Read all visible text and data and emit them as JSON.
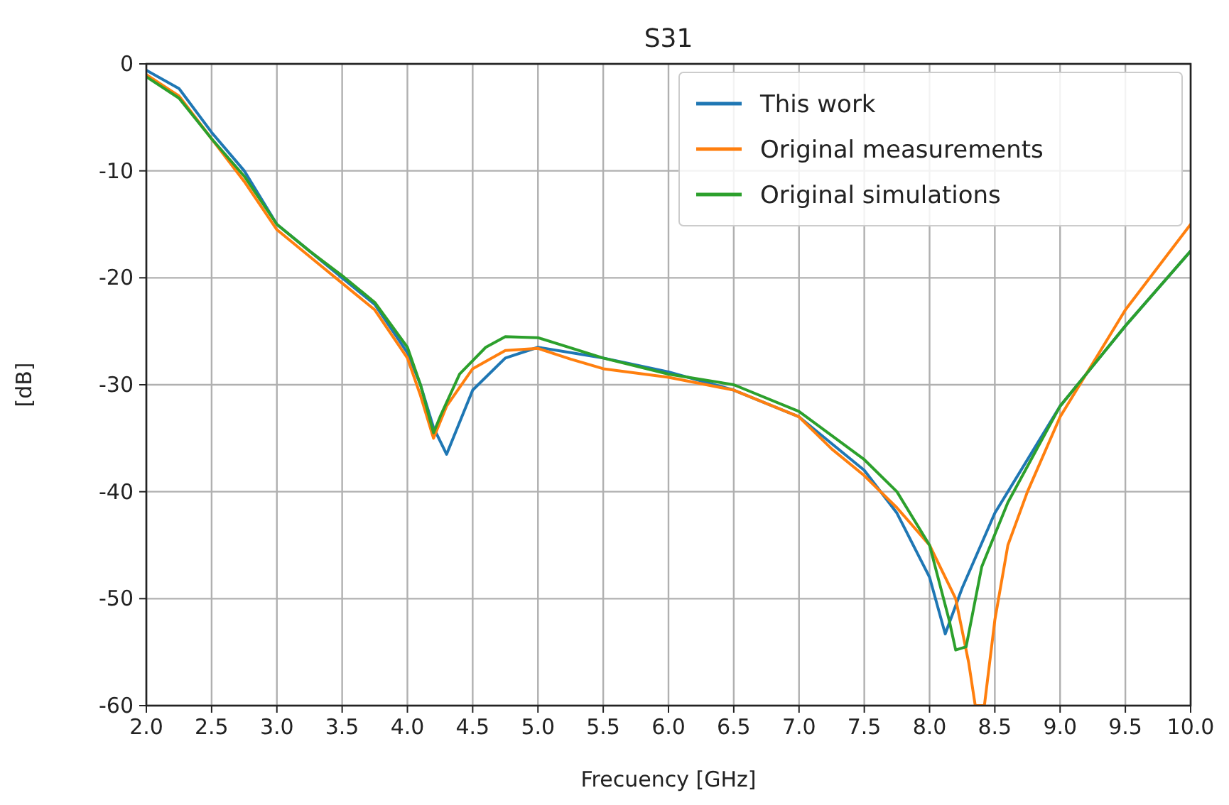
{
  "chart_data": {
    "type": "line",
    "title": "S31",
    "xlabel": "Frecuency [GHz]",
    "ylabel": "[dB]",
    "xlim": [
      2.0,
      10.0
    ],
    "xticks": [
      {
        "value": 2,
        "label": "2.0"
      },
      {
        "value": 2.5,
        "label": "2.5"
      },
      {
        "value": 3,
        "label": "3.0"
      },
      {
        "value": 3.5,
        "label": "3.5"
      },
      {
        "value": 4,
        "label": "4.0"
      },
      {
        "value": 4.5,
        "label": "4.5"
      },
      {
        "value": 5,
        "label": "5.0"
      },
      {
        "value": 5.5,
        "label": "5.5"
      },
      {
        "value": 6,
        "label": "6.0"
      },
      {
        "value": 6.5,
        "label": "6.5"
      },
      {
        "value": 7,
        "label": "7.0"
      },
      {
        "value": 7.5,
        "label": "7.5"
      },
      {
        "value": 8,
        "label": "8.0"
      },
      {
        "value": 8.5,
        "label": "8.5"
      },
      {
        "value": 9,
        "label": "9.0"
      },
      {
        "value": 9.5,
        "label": "9.5"
      },
      {
        "value": 10,
        "label": "10.0"
      }
    ],
    "ylim": [
      -60,
      0
    ],
    "yticks": [
      -60,
      -50,
      -40,
      -30,
      -20,
      -10,
      0
    ],
    "grid": true,
    "legend": "top right",
    "series": [
      {
        "name": "This work",
        "color": "#1f77b4",
        "x": [
          2.0,
          2.25,
          2.5,
          2.75,
          3.0,
          3.25,
          3.5,
          3.75,
          4.0,
          4.1,
          4.2,
          4.3,
          4.4,
          4.5,
          4.75,
          5.0,
          5.5,
          6.0,
          6.5,
          7.0,
          7.5,
          7.75,
          8.0,
          8.12,
          8.25,
          8.5,
          9.0,
          9.5,
          10.0
        ],
        "values": [
          -0.6,
          -2.3,
          -6.4,
          -10,
          -15,
          -17.5,
          -20,
          -22.5,
          -27,
          -30,
          -34,
          -36.5,
          -33.5,
          -30.5,
          -27.5,
          -26.5,
          -27.5,
          -28.8,
          -30.5,
          -33,
          -38,
          -42,
          -48,
          -53.3,
          -49,
          -42,
          -32,
          -24.5,
          -17.5
        ]
      },
      {
        "name": "Original measurements",
        "color": "#ff7f0e",
        "x": [
          2.0,
          2.25,
          2.5,
          2.75,
          3.0,
          3.25,
          3.5,
          3.75,
          4.0,
          4.1,
          4.2,
          4.3,
          4.5,
          4.75,
          5.0,
          5.25,
          5.5,
          6.0,
          6.5,
          7.0,
          7.25,
          7.5,
          7.75,
          8.0,
          8.2,
          8.3,
          8.35,
          8.42,
          8.5,
          8.6,
          8.75,
          9.0,
          9.5,
          10.0
        ],
        "values": [
          -1,
          -3,
          -7,
          -11,
          -15.5,
          -18,
          -20.5,
          -23,
          -27.5,
          -31,
          -35,
          -32,
          -28.5,
          -26.8,
          -26.6,
          -27.6,
          -28.5,
          -29.3,
          -30.5,
          -33,
          -36,
          -38.5,
          -41.5,
          -45,
          -50,
          -56,
          -60,
          -60,
          -52,
          -45,
          -40,
          -33,
          -23,
          -15
        ]
      },
      {
        "name": "Original simulations",
        "color": "#2ca02c",
        "x": [
          2.0,
          2.25,
          2.5,
          2.75,
          3.0,
          3.25,
          3.5,
          3.75,
          4.0,
          4.1,
          4.2,
          4.25,
          4.4,
          4.6,
          4.75,
          5.0,
          5.5,
          6.0,
          6.5,
          7.0,
          7.5,
          7.75,
          8.0,
          8.15,
          8.2,
          8.28,
          8.4,
          8.6,
          9.0,
          9.5,
          10.0
        ],
        "values": [
          -1.2,
          -3.2,
          -7,
          -10.5,
          -15,
          -17.5,
          -19.8,
          -22.3,
          -26.5,
          -30,
          -34.5,
          -33,
          -29,
          -26.5,
          -25.5,
          -25.6,
          -27.5,
          -29,
          -30,
          -32.5,
          -37,
          -40,
          -45,
          -52,
          -54.8,
          -54.5,
          -47,
          -41,
          -32,
          -24.5,
          -17.5
        ]
      }
    ]
  }
}
